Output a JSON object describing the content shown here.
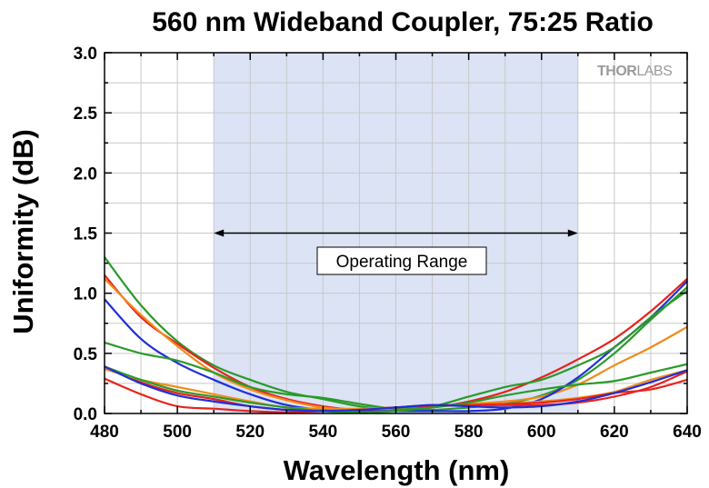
{
  "chart_data": {
    "type": "line",
    "title": "560 nm Wideband Coupler, 75:25 Ratio",
    "xlabel": "Wavelength (nm)",
    "ylabel": "Uniformity (dB)",
    "xlim": [
      480,
      640
    ],
    "ylim": [
      0,
      3.0
    ],
    "x_ticks": [
      "480",
      "500",
      "520",
      "540",
      "560",
      "580",
      "600",
      "620",
      "640"
    ],
    "y_ticks": [
      "0.0",
      "0.5",
      "1.0",
      "1.5",
      "2.0",
      "2.5",
      "3.0"
    ],
    "grid": true,
    "operating_range": {
      "label": "Operating Range",
      "x_start": 510,
      "x_end": 610,
      "shade_color": "#dbe3f5"
    },
    "logo_text": "THORLABS",
    "series": [
      {
        "color": "#2a9a2a",
        "x": [
          480,
          490,
          500,
          510,
          520,
          530,
          540,
          550,
          560,
          570,
          580,
          590,
          600,
          610,
          620,
          630,
          640
        ],
        "y": [
          1.3,
          0.9,
          0.6,
          0.4,
          0.28,
          0.18,
          0.12,
          0.06,
          0.03,
          0.03,
          0.05,
          0.08,
          0.15,
          0.28,
          0.5,
          0.78,
          1.05
        ]
      },
      {
        "color": "#e8231c",
        "x": [
          480,
          490,
          500,
          510,
          520,
          530,
          540,
          550,
          560,
          570,
          580,
          590,
          600,
          610,
          620,
          630,
          640
        ],
        "y": [
          1.15,
          0.8,
          0.58,
          0.38,
          0.22,
          0.12,
          0.06,
          0.03,
          0.04,
          0.05,
          0.1,
          0.18,
          0.3,
          0.45,
          0.62,
          0.85,
          1.12
        ]
      },
      {
        "color": "#f08c1a",
        "x": [
          480,
          490,
          500,
          510,
          520,
          530,
          540,
          550,
          560,
          570,
          580,
          590,
          600,
          610,
          620,
          630,
          640
        ],
        "y": [
          1.12,
          0.82,
          0.56,
          0.34,
          0.2,
          0.11,
          0.05,
          0.03,
          0.04,
          0.06,
          0.08,
          0.1,
          0.14,
          0.24,
          0.4,
          0.55,
          0.72
        ]
      },
      {
        "color": "#1f2fd8",
        "x": [
          480,
          490,
          500,
          510,
          520,
          530,
          540,
          550,
          560,
          570,
          580,
          590,
          600,
          610,
          620,
          630,
          640
        ],
        "y": [
          0.95,
          0.62,
          0.42,
          0.28,
          0.16,
          0.07,
          0.03,
          0.02,
          0.02,
          0.02,
          0.02,
          0.04,
          0.12,
          0.3,
          0.55,
          0.8,
          1.1
        ]
      },
      {
        "color": "#2a9a2a",
        "x": [
          480,
          490,
          500,
          510,
          520,
          530,
          540,
          550,
          560,
          570,
          580,
          590,
          600,
          610,
          620,
          630,
          640
        ],
        "y": [
          0.59,
          0.5,
          0.44,
          0.34,
          0.22,
          0.16,
          0.13,
          0.08,
          0.04,
          0.06,
          0.14,
          0.22,
          0.28,
          0.4,
          0.55,
          0.8,
          1.02
        ]
      },
      {
        "color": "#e8231c",
        "x": [
          480,
          490,
          500,
          510,
          520,
          530,
          540,
          550,
          560,
          570,
          580,
          590,
          600,
          610,
          620,
          630,
          640
        ],
        "y": [
          0.39,
          0.26,
          0.17,
          0.12,
          0.06,
          0.03,
          0.02,
          0.03,
          0.05,
          0.07,
          0.07,
          0.07,
          0.07,
          0.09,
          0.14,
          0.22,
          0.35
        ]
      },
      {
        "color": "#f08c1a",
        "x": [
          480,
          490,
          500,
          510,
          520,
          530,
          540,
          550,
          560,
          570,
          580,
          590,
          600,
          610,
          620,
          630,
          640
        ],
        "y": [
          0.37,
          0.28,
          0.22,
          0.16,
          0.1,
          0.05,
          0.04,
          0.04,
          0.05,
          0.06,
          0.07,
          0.08,
          0.1,
          0.13,
          0.18,
          0.28,
          0.36
        ]
      },
      {
        "color": "#e8231c",
        "x": [
          480,
          490,
          500,
          510,
          520,
          530,
          540,
          550,
          560,
          570,
          580,
          590,
          600,
          610,
          620,
          630,
          640
        ],
        "y": [
          0.29,
          0.16,
          0.06,
          0.04,
          0.02,
          0.01,
          0.02,
          0.03,
          0.05,
          0.06,
          0.07,
          0.08,
          0.09,
          0.12,
          0.17,
          0.2,
          0.28
        ]
      },
      {
        "color": "#2a9a2a",
        "x": [
          480,
          490,
          500,
          510,
          520,
          530,
          540,
          550,
          560,
          570,
          580,
          590,
          600,
          610,
          620,
          630,
          640
        ],
        "y": [
          0.39,
          0.28,
          0.19,
          0.14,
          0.09,
          0.05,
          0.02,
          0.01,
          0.02,
          0.05,
          0.09,
          0.15,
          0.2,
          0.24,
          0.27,
          0.34,
          0.41
        ]
      },
      {
        "color": "#1f2fd8",
        "x": [
          480,
          490,
          500,
          510,
          520,
          530,
          540,
          550,
          560,
          570,
          580,
          590,
          600,
          610,
          620,
          630,
          640
        ],
        "y": [
          0.39,
          0.25,
          0.15,
          0.1,
          0.06,
          0.03,
          0.02,
          0.03,
          0.05,
          0.07,
          0.06,
          0.05,
          0.06,
          0.1,
          0.17,
          0.26,
          0.36
        ]
      }
    ]
  }
}
